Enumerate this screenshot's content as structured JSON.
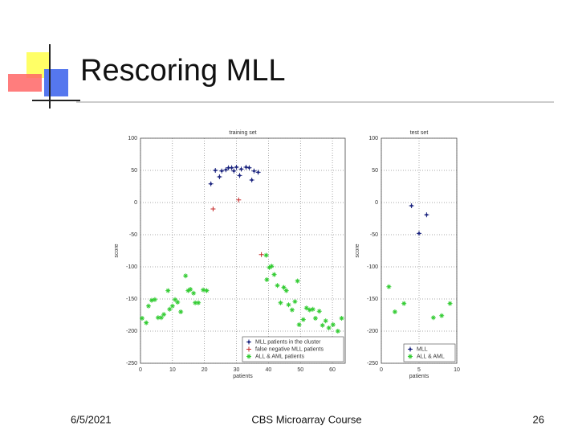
{
  "slide": {
    "title": "Rescoring MLL",
    "footer": {
      "date": "6/5/2021",
      "course": "CBS Microarray Course",
      "page": "26"
    }
  },
  "chart_data": [
    {
      "type": "scatter",
      "title": "training set",
      "xlabel": "patients",
      "ylabel": "score",
      "xlim": [
        0,
        64
      ],
      "ylim": [
        -250,
        100
      ],
      "xticks": [
        0,
        10,
        20,
        30,
        40,
        50,
        60
      ],
      "yticks": [
        100,
        50,
        0,
        -50,
        -100,
        -150,
        -200,
        -250
      ],
      "grid": true,
      "legend": "lower right",
      "series": [
        {
          "name": "MLL patients in the cluster",
          "color": "#1a237e",
          "marker": "plus-dot",
          "x": [
            22,
            23.4,
            24.7,
            25.4,
            26.7,
            27.5,
            28.5,
            29.2,
            30,
            31,
            31.5,
            33,
            34,
            34.8,
            35.5,
            36.8
          ],
          "y": [
            29,
            50,
            40,
            49,
            51,
            54,
            54,
            49,
            55,
            42,
            52,
            55,
            54,
            35,
            49,
            47
          ]
        },
        {
          "name": "false negative MLL patients",
          "color": "#c62828",
          "marker": "plus",
          "x": [
            22.7,
            30.7,
            37.8
          ],
          "y": [
            -10,
            4,
            -81
          ]
        },
        {
          "name": "ALL & AML patients",
          "color": "#33cc33",
          "marker": "star",
          "x": [
            0.5,
            1.8,
            2.5,
            3.5,
            4.5,
            5.5,
            6.5,
            7.3,
            8.6,
            9.1,
            10,
            10.8,
            11.6,
            12.6,
            14.1,
            14.9,
            15.6,
            16.6,
            17.1,
            18.1,
            19.6,
            20.7,
            39.3,
            40.3,
            39.5,
            41,
            41.8,
            42.8,
            43.8,
            44.8,
            45.6,
            46.3,
            47.4,
            48.3,
            49.1,
            49.6,
            50.9,
            51.9,
            52.9,
            53.9,
            54.7,
            55.9,
            56.9,
            57.9,
            58.9,
            60.2,
            61.7,
            62.9
          ],
          "y": [
            -180,
            -187,
            -161,
            -152,
            -151,
            -179,
            -179,
            -174,
            -137,
            -166,
            -161,
            -151,
            -155,
            -170,
            -114,
            -137,
            -135,
            -141,
            -156,
            -156,
            -136,
            -137,
            -82,
            -101,
            -120,
            -99,
            -112,
            -129,
            -156,
            -132,
            -137,
            -159,
            -167,
            -154,
            -122,
            -190,
            -182,
            -164,
            -167,
            -166,
            -180,
            -169,
            -191,
            -184,
            -195,
            -190,
            -200,
            -180
          ]
        }
      ]
    },
    {
      "type": "scatter",
      "title": "test set",
      "xlabel": "patients",
      "ylabel": "score",
      "xlim": [
        0,
        10
      ],
      "ylim": [
        -250,
        100
      ],
      "xticks": [
        0,
        5,
        10
      ],
      "yticks": [
        100,
        50,
        0,
        -50,
        -100,
        -150,
        -200,
        -250
      ],
      "grid": true,
      "legend": "lower right",
      "series": [
        {
          "name": "MLL",
          "color": "#1a237e",
          "marker": "plus-dot",
          "x": [
            4,
            5,
            6
          ],
          "y": [
            -5,
            -48,
            -19
          ]
        },
        {
          "name": "ALL & AML",
          "color": "#33cc33",
          "marker": "star",
          "x": [
            1,
            1.8,
            3,
            6.9,
            8,
            9.1
          ],
          "y": [
            -131,
            -170,
            -157,
            -179,
            -176,
            -157
          ]
        }
      ]
    }
  ]
}
